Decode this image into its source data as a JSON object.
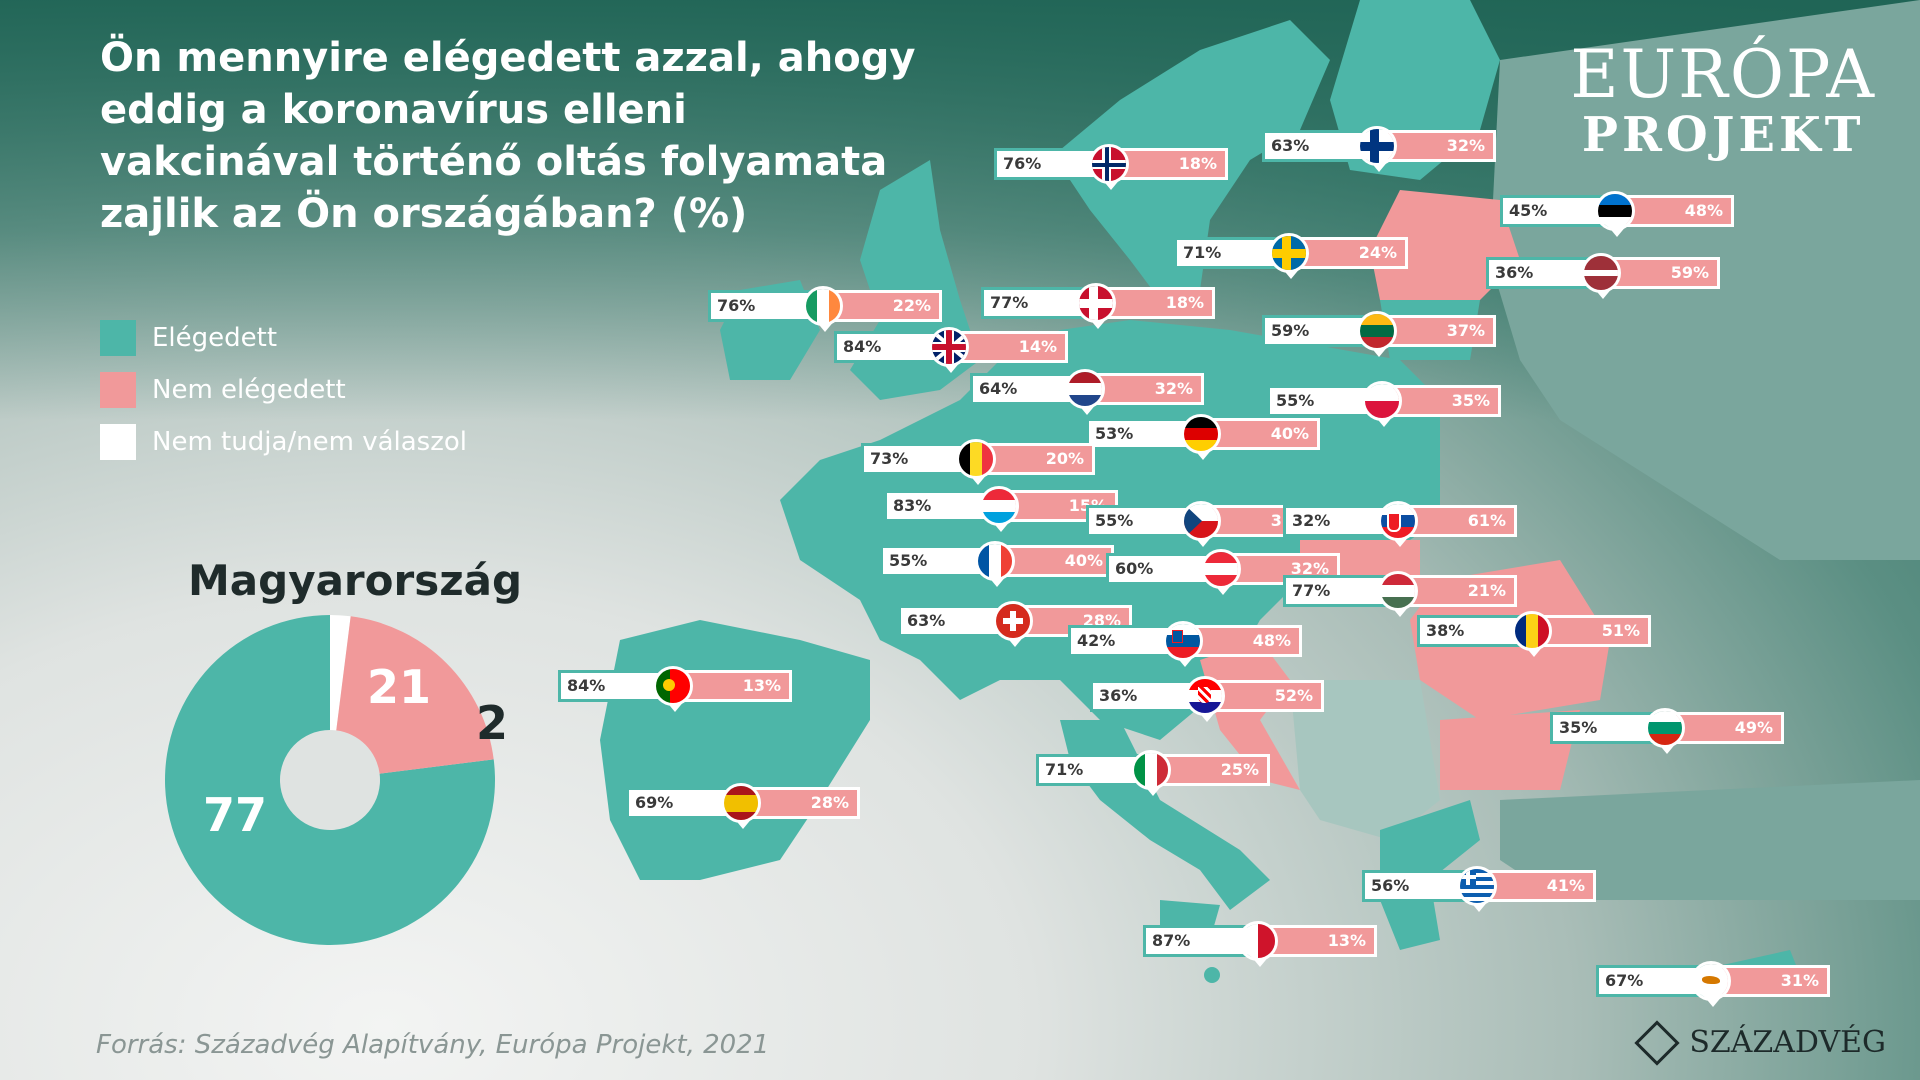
{
  "title": "Ön mennyire elégedett azzal, ahogy eddig a koronavírus elleni vakcinával történő oltás folyamata zajlik az Ön országában? (%)",
  "legend": {
    "satisfied": "Elégedett",
    "not_satisfied": "Nem elégedett",
    "dont_know": "Nem tudja/nem válaszol"
  },
  "colors": {
    "satisfied": "#4db6a8",
    "not_satisfied": "#f1999a",
    "dont_know": "#ffffff",
    "non_eu_land": "#7aa69d"
  },
  "hungary": {
    "title": "Magyarország",
    "values": {
      "satisfied": 77,
      "not_satisfied": 21,
      "dont_know": 2
    },
    "labels": {
      "satisfied": "77",
      "not_satisfied": "21",
      "dont_know": "2"
    }
  },
  "logo": {
    "top": "EURÓPA",
    "bottom": "PROJEKT"
  },
  "source": "Forrás: Századvég Alapítvány, Európa Projekt, 2021",
  "brand": "SZÁZADVÉG",
  "countries": [
    {
      "name": "Norway",
      "flag": "norway-flag-icon",
      "satisfied": "76%",
      "not_satisfied": "18%"
    },
    {
      "name": "Finland",
      "flag": "finland-flag-icon",
      "satisfied": "63%",
      "not_satisfied": "32%"
    },
    {
      "name": "Estonia",
      "flag": "estonia-flag-icon",
      "satisfied": "45%",
      "not_satisfied": "48%"
    },
    {
      "name": "Latvia",
      "flag": "latvia-flag-icon",
      "satisfied": "36%",
      "not_satisfied": "59%"
    },
    {
      "name": "Sweden",
      "flag": "sweden-flag-icon",
      "satisfied": "71%",
      "not_satisfied": "24%"
    },
    {
      "name": "Denmark",
      "flag": "denmark-flag-icon",
      "satisfied": "77%",
      "not_satisfied": "18%"
    },
    {
      "name": "Ireland",
      "flag": "ireland-flag-icon",
      "satisfied": "76%",
      "not_satisfied": "22%"
    },
    {
      "name": "United Kingdom",
      "flag": "uk-flag-icon",
      "satisfied": "84%",
      "not_satisfied": "14%"
    },
    {
      "name": "Lithuania",
      "flag": "lithuania-flag-icon",
      "satisfied": "59%",
      "not_satisfied": "37%"
    },
    {
      "name": "Netherlands",
      "flag": "netherlands-flag-icon",
      "satisfied": "64%",
      "not_satisfied": "32%"
    },
    {
      "name": "Poland",
      "flag": "poland-flag-icon",
      "satisfied": "55%",
      "not_satisfied": "35%"
    },
    {
      "name": "Germany",
      "flag": "germany-flag-icon",
      "satisfied": "53%",
      "not_satisfied": "40%"
    },
    {
      "name": "Belgium",
      "flag": "belgium-flag-icon",
      "satisfied": "73%",
      "not_satisfied": "20%"
    },
    {
      "name": "Luxembourg",
      "flag": "luxembourg-flag-icon",
      "satisfied": "83%",
      "not_satisfied": "15%"
    },
    {
      "name": "Czech Republic",
      "flag": "czech-flag-icon",
      "satisfied": "55%",
      "not_satisfied": "35%"
    },
    {
      "name": "Slovakia",
      "flag": "slovakia-flag-icon",
      "satisfied": "32%",
      "not_satisfied": "61%"
    },
    {
      "name": "France",
      "flag": "france-flag-icon",
      "satisfied": "55%",
      "not_satisfied": "40%"
    },
    {
      "name": "Austria",
      "flag": "austria-flag-icon",
      "satisfied": "60%",
      "not_satisfied": "32%"
    },
    {
      "name": "Hungary",
      "flag": "hungary-flag-icon",
      "satisfied": "77%",
      "not_satisfied": "21%"
    },
    {
      "name": "Switzerland",
      "flag": "switzerland-flag-icon",
      "satisfied": "63%",
      "not_satisfied": "28%"
    },
    {
      "name": "Slovenia",
      "flag": "slovenia-flag-icon",
      "satisfied": "42%",
      "not_satisfied": "48%"
    },
    {
      "name": "Romania",
      "flag": "romania-flag-icon",
      "satisfied": "38%",
      "not_satisfied": "51%"
    },
    {
      "name": "Portugal",
      "flag": "portugal-flag-icon",
      "satisfied": "84%",
      "not_satisfied": "13%"
    },
    {
      "name": "Croatia",
      "flag": "croatia-flag-icon",
      "satisfied": "36%",
      "not_satisfied": "52%"
    },
    {
      "name": "Bulgaria",
      "flag": "bulgaria-flag-icon",
      "satisfied": "35%",
      "not_satisfied": "49%"
    },
    {
      "name": "Italy",
      "flag": "italy-flag-icon",
      "satisfied": "71%",
      "not_satisfied": "25%"
    },
    {
      "name": "Spain",
      "flag": "spain-flag-icon",
      "satisfied": "69%",
      "not_satisfied": "28%"
    },
    {
      "name": "Greece",
      "flag": "greece-flag-icon",
      "satisfied": "56%",
      "not_satisfied": "41%"
    },
    {
      "name": "Malta",
      "flag": "malta-flag-icon",
      "satisfied": "87%",
      "not_satisfied": "13%"
    },
    {
      "name": "Cyprus",
      "flag": "cyprus-flag-icon",
      "satisfied": "67%",
      "not_satisfied": "31%"
    }
  ]
}
